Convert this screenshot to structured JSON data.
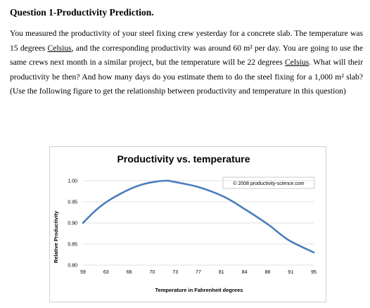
{
  "question": {
    "title": "Question 1-Productivity Prediction.",
    "paragraph": [
      {
        "t": "You measured the productivity of your steel fixing crew yesterday for a concrete slab. The temperature was 15 degrees "
      },
      {
        "t": "Celsius",
        "u": true
      },
      {
        "t": ", and the corresponding productivity was around 60 m² per day. You are going to use the same crews next month in a similar project, but the temperature will be 22 degrees "
      },
      {
        "t": "Celsius",
        "u": true
      },
      {
        "t": ". What will their productivity be then? And how many days do you estimate them to do the steel fixing for a 1,000 m² slab? (Use the following figure to get the relationship between productivity and temperature in this question)"
      }
    ]
  },
  "chart_data": {
    "type": "line",
    "title": "Productivity vs. temperature",
    "copyright": "© 2008 productivity-science.com",
    "xlabel": "Temperature in Fahrenheit degrees",
    "ylabel": "Relative Productivity",
    "x_ticks": [
      "59",
      "63",
      "66",
      "70",
      "73",
      "77",
      "81",
      "84",
      "88",
      "91",
      "95"
    ],
    "y_ticks": [
      "1.00",
      "0.95",
      "0.90",
      "0.85",
      "0.80"
    ],
    "ylim": [
      0.8,
      1.0
    ],
    "xlim": [
      59,
      95
    ],
    "grid": "horizontal",
    "line_color": "#4a7ebb",
    "series": [
      {
        "x": [
          59,
          61,
          63,
          66,
          68,
          70,
          72,
          73,
          77,
          81,
          84,
          88,
          91,
          95
        ],
        "values": [
          0.9,
          0.93,
          0.953,
          0.978,
          0.99,
          0.997,
          1.0,
          0.998,
          0.985,
          0.962,
          0.935,
          0.895,
          0.86,
          0.83
        ]
      }
    ]
  }
}
